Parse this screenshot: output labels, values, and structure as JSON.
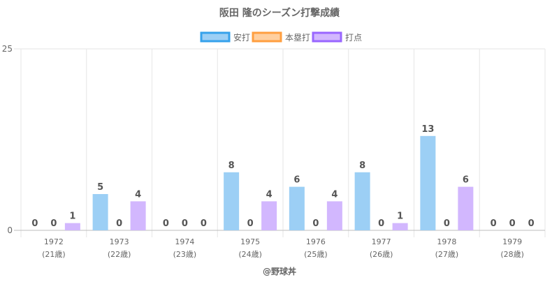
{
  "chart_data": {
    "type": "bar",
    "title": "阪田 隆のシーズン打撃成績",
    "categories": [
      "1972",
      "1973",
      "1974",
      "1975",
      "1976",
      "1977",
      "1978",
      "1979"
    ],
    "category_sublabels": [
      "(21歳)",
      "(22歳)",
      "(23歳)",
      "(24歳)",
      "(25歳)",
      "(26歳)",
      "(27歳)",
      "(28歳)"
    ],
    "series": [
      {
        "name": "安打",
        "values": [
          0,
          5,
          0,
          8,
          6,
          8,
          13,
          0
        ],
        "color": "#9ccff5",
        "border": "#36a2eb"
      },
      {
        "name": "本塁打",
        "values": [
          0,
          0,
          0,
          0,
          0,
          0,
          0,
          0
        ],
        "color": "#ffcf9f",
        "border": "#ff9f40"
      },
      {
        "name": "打点",
        "values": [
          1,
          4,
          0,
          4,
          4,
          1,
          6,
          0
        ],
        "color": "#d2b7fe",
        "border": "#9966ff"
      }
    ],
    "ylim": [
      0,
      25
    ],
    "yticks": [
      "0",
      "25"
    ],
    "legend_position": "top",
    "grid": true,
    "footer": "@野球丼"
  }
}
